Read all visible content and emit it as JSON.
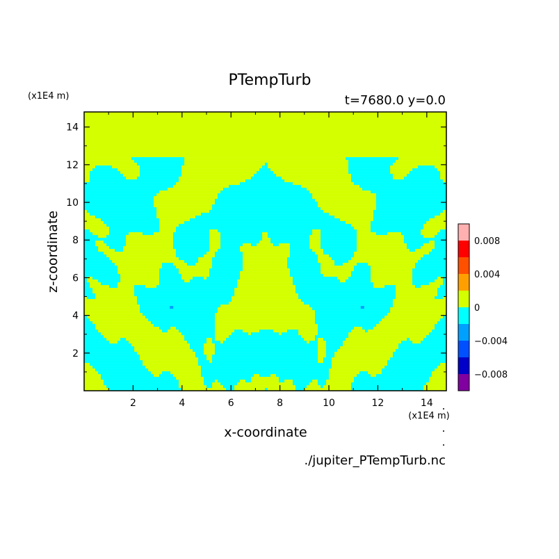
{
  "chart_data": {
    "type": "heatmap",
    "title": "PTempTurb",
    "subtitle": "t=7680.0 y=0.0",
    "xlabel": "x-coordinate",
    "ylabel": "z-coordinate",
    "x_unit": "(x1E4 m)",
    "y_unit": "(x1E4 m)",
    "xlim": [
      0,
      14.8
    ],
    "ylim": [
      0,
      14.8
    ],
    "x_ticks": [
      2,
      4,
      6,
      8,
      10,
      12,
      14
    ],
    "y_ticks": [
      2,
      4,
      6,
      8,
      10,
      12,
      14
    ],
    "field_top_z": 12.4,
    "field_bottom_z": 0.1,
    "colorbar": {
      "levels": [
        -0.01,
        -0.008,
        -0.006,
        -0.004,
        -0.002,
        0,
        0.002,
        0.004,
        0.006,
        0.008,
        0.01
      ],
      "colors": [
        "#8000a0",
        "#0000c8",
        "#0050ff",
        "#00a0ff",
        "#00ffff",
        "#d4ff00",
        "#ffa000",
        "#ff5000",
        "#ff0000",
        "#ffb0b0"
      ],
      "tick_values": [
        -0.008,
        -0.004,
        0,
        0.004,
        0.008
      ],
      "tick_labels": [
        "−0.008",
        "−0.004",
        "0",
        "0.004",
        "0.008"
      ]
    },
    "dominant_colors": {
      "positive_small": "#d4ff00",
      "negative_small": "#00ffff"
    },
    "source_file": "./jupiter_PTempTurb.nc"
  }
}
